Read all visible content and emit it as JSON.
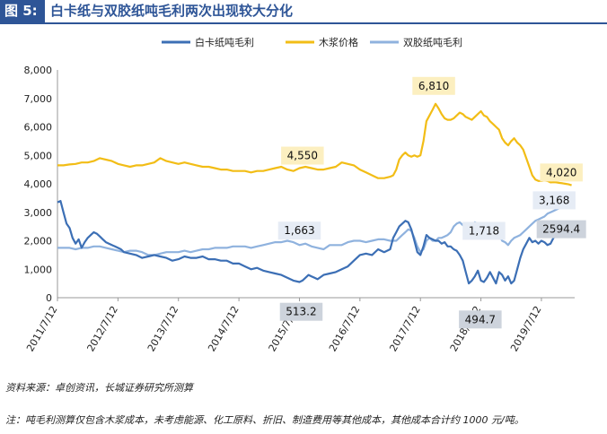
{
  "header": {
    "figure_label": "图 5:",
    "title": "白卡纸与双胶纸吨毛利两次出现较大分化"
  },
  "colors": {
    "brand": "#2e5597",
    "baika": "#3c6fb5",
    "pulp": "#f2bd16",
    "shuangjiao": "#8fb2de",
    "label_yellow_bg": "#fcefc0",
    "label_blue_bg": "#e6ecf5",
    "label_gray_bg": "#cdd3dc"
  },
  "source": "资料来源：卓创资讯，长城证券研究所测算",
  "note": "注：吨毛利测算仅包含木浆成本，未考虑能源、化工原料、折旧、制造费用等其他成本，其他成本合计约 1000 元/吨。",
  "chart_data": {
    "type": "line",
    "title": "白卡纸与双胶纸吨毛利两次出现较大分化",
    "xlabel": "",
    "ylabel": "",
    "ylim": [
      0,
      8000
    ],
    "yticks": [
      "0",
      "1,000",
      "2,000",
      "3,000",
      "4,000",
      "5,000",
      "6,000",
      "7,000",
      "8,000"
    ],
    "xlim": [
      2011.5,
      2020.05
    ],
    "xticks": [
      {
        "x": 2011.5,
        "label": "2011/7/12"
      },
      {
        "x": 2012.5,
        "label": "2012/7/12"
      },
      {
        "x": 2013.5,
        "label": "2013/7/12"
      },
      {
        "x": 2014.5,
        "label": "2014/7/12"
      },
      {
        "x": 2015.5,
        "label": "2015/7/12"
      },
      {
        "x": 2016.5,
        "label": "2016/7/12"
      },
      {
        "x": 2017.5,
        "label": "2017/7/12"
      },
      {
        "x": 2018.5,
        "label": "2018/7/12"
      },
      {
        "x": 2019.5,
        "label": "2019/7/12"
      }
    ],
    "legend": [
      "白卡纸吨毛利",
      "木浆价格",
      "双胶纸吨毛利"
    ],
    "series": [
      {
        "name": "白卡纸吨毛利",
        "x": [
          2011.5,
          2011.55,
          2011.6,
          2011.65,
          2011.7,
          2011.75,
          2011.8,
          2011.85,
          2011.9,
          2011.95,
          2012.0,
          2012.05,
          2012.1,
          2012.15,
          2012.2,
          2012.25,
          2012.3,
          2012.35,
          2012.4,
          2012.45,
          2012.5,
          2012.55,
          2012.6,
          2012.7,
          2012.8,
          2012.9,
          2013.0,
          2013.1,
          2013.2,
          2013.3,
          2013.4,
          2013.5,
          2013.6,
          2013.7,
          2013.8,
          2013.9,
          2014.0,
          2014.1,
          2014.2,
          2014.3,
          2014.4,
          2014.5,
          2014.6,
          2014.7,
          2014.8,
          2014.9,
          2015.0,
          2015.1,
          2015.2,
          2015.3,
          2015.4,
          2015.5,
          2015.55,
          2015.6,
          2015.65,
          2015.7,
          2015.75,
          2015.8,
          2015.9,
          2016.0,
          2016.1,
          2016.2,
          2016.3,
          2016.4,
          2016.5,
          2016.6,
          2016.7,
          2016.8,
          2016.9,
          2017.0,
          2017.05,
          2017.1,
          2017.15,
          2017.2,
          2017.25,
          2017.3,
          2017.35,
          2017.4,
          2017.45,
          2017.5,
          2017.55,
          2017.6,
          2017.65,
          2017.7,
          2017.75,
          2017.8,
          2017.85,
          2017.9,
          2017.95,
          2018.0,
          2018.05,
          2018.1,
          2018.15,
          2018.2,
          2018.25,
          2018.3,
          2018.35,
          2018.4,
          2018.45,
          2018.5,
          2018.55,
          2018.6,
          2018.65,
          2018.7,
          2018.75,
          2018.8,
          2018.85,
          2018.9,
          2018.95,
          2019.0,
          2019.05,
          2019.1,
          2019.15,
          2019.2,
          2019.25,
          2019.3,
          2019.35,
          2019.4,
          2019.45,
          2019.5,
          2019.55,
          2019.6,
          2019.65,
          2019.7,
          2019.75,
          2019.8,
          2019.85,
          2019.9,
          2019.95,
          2020.0
        ],
        "values": [
          3350,
          3400,
          3000,
          2600,
          2450,
          2100,
          1900,
          2050,
          1750,
          1950,
          2100,
          2200,
          2300,
          2250,
          2150,
          2050,
          1950,
          1900,
          1850,
          1800,
          1750,
          1700,
          1600,
          1550,
          1500,
          1400,
          1450,
          1500,
          1450,
          1400,
          1300,
          1350,
          1450,
          1400,
          1400,
          1450,
          1350,
          1350,
          1300,
          1300,
          1200,
          1200,
          1100,
          1000,
          1050,
          950,
          900,
          850,
          800,
          700,
          600,
          550,
          600,
          700,
          800,
          750,
          700,
          650,
          800,
          850,
          900,
          1000,
          1100,
          1300,
          1500,
          1550,
          1500,
          1700,
          1600,
          1700,
          2100,
          2300,
          2500,
          2600,
          2700,
          2650,
          2400,
          2000,
          1600,
          1500,
          1800,
          2200,
          2100,
          2050,
          2000,
          2000,
          1900,
          1950,
          1800,
          1800,
          1700,
          1650,
          1500,
          1300,
          900,
          500,
          600,
          750,
          950,
          600,
          550,
          700,
          900,
          700,
          500,
          900,
          800,
          600,
          750,
          500,
          600,
          1000,
          1400,
          1700,
          1900,
          2100,
          1950,
          2000,
          1900,
          2000,
          1950,
          1850,
          1900,
          2100,
          2200,
          2300,
          2400,
          2500,
          2450,
          2594.4
        ]
      },
      {
        "name": "木浆价格",
        "x": [
          2011.5,
          2011.6,
          2011.7,
          2011.8,
          2011.9,
          2012.0,
          2012.1,
          2012.2,
          2012.3,
          2012.4,
          2012.5,
          2012.6,
          2012.7,
          2012.8,
          2012.9,
          2013.0,
          2013.1,
          2013.2,
          2013.3,
          2013.4,
          2013.5,
          2013.6,
          2013.7,
          2013.8,
          2013.9,
          2014.0,
          2014.1,
          2014.2,
          2014.3,
          2014.4,
          2014.5,
          2014.6,
          2014.7,
          2014.8,
          2014.9,
          2015.0,
          2015.1,
          2015.2,
          2015.3,
          2015.4,
          2015.5,
          2015.6,
          2015.7,
          2015.8,
          2015.9,
          2016.0,
          2016.1,
          2016.2,
          2016.3,
          2016.4,
          2016.5,
          2016.6,
          2016.7,
          2016.8,
          2016.9,
          2017.0,
          2017.05,
          2017.1,
          2017.15,
          2017.2,
          2017.25,
          2017.3,
          2017.35,
          2017.4,
          2017.45,
          2017.5,
          2017.55,
          2017.6,
          2017.65,
          2017.7,
          2017.75,
          2017.8,
          2017.85,
          2017.9,
          2017.95,
          2018.0,
          2018.05,
          2018.1,
          2018.15,
          2018.2,
          2018.25,
          2018.3,
          2018.35,
          2018.4,
          2018.45,
          2018.5,
          2018.55,
          2018.6,
          2018.65,
          2018.7,
          2018.75,
          2018.8,
          2018.85,
          2018.9,
          2018.95,
          2019.0,
          2019.05,
          2019.1,
          2019.15,
          2019.2,
          2019.25,
          2019.3,
          2019.35,
          2019.4,
          2019.45,
          2019.5,
          2019.55,
          2019.6,
          2019.65,
          2019.7,
          2019.75,
          2019.8,
          2019.85,
          2019.9,
          2019.95,
          2020.0
        ],
        "values": [
          4650,
          4650,
          4680,
          4700,
          4750,
          4750,
          4800,
          4900,
          4850,
          4800,
          4700,
          4650,
          4600,
          4650,
          4650,
          4700,
          4750,
          4900,
          4800,
          4750,
          4700,
          4750,
          4700,
          4650,
          4600,
          4600,
          4550,
          4500,
          4500,
          4450,
          4450,
          4450,
          4400,
          4450,
          4450,
          4500,
          4550,
          4600,
          4500,
          4450,
          4550,
          4600,
          4550,
          4500,
          4500,
          4550,
          4600,
          4750,
          4700,
          4650,
          4500,
          4400,
          4300,
          4200,
          4200,
          4250,
          4300,
          4500,
          4850,
          5000,
          5100,
          5000,
          4950,
          5000,
          4950,
          5000,
          5500,
          6200,
          6400,
          6600,
          6810,
          6650,
          6450,
          6300,
          6250,
          6250,
          6300,
          6400,
          6500,
          6450,
          6350,
          6300,
          6250,
          6350,
          6450,
          6550,
          6400,
          6350,
          6200,
          6100,
          6000,
          5900,
          5600,
          5450,
          5350,
          5500,
          5600,
          5450,
          5350,
          5200,
          4900,
          4600,
          4300,
          4150,
          4100,
          4100,
          4120,
          4100,
          4050,
          4060,
          4050,
          4030,
          4020,
          4000,
          3980,
          3950
        ]
      },
      {
        "name": "双胶纸吨毛利",
        "x": [
          2011.5,
          2011.6,
          2011.7,
          2011.8,
          2011.9,
          2012.0,
          2012.1,
          2012.2,
          2012.3,
          2012.4,
          2012.5,
          2012.6,
          2012.7,
          2012.8,
          2012.9,
          2013.0,
          2013.1,
          2013.2,
          2013.3,
          2013.4,
          2013.5,
          2013.6,
          2013.7,
          2013.8,
          2013.9,
          2014.0,
          2014.1,
          2014.2,
          2014.3,
          2014.4,
          2014.5,
          2014.6,
          2014.7,
          2014.8,
          2014.9,
          2015.0,
          2015.1,
          2015.2,
          2015.3,
          2015.4,
          2015.5,
          2015.6,
          2015.7,
          2015.8,
          2015.9,
          2016.0,
          2016.1,
          2016.2,
          2016.3,
          2016.4,
          2016.5,
          2016.6,
          2016.7,
          2016.8,
          2016.9,
          2017.0,
          2017.05,
          2017.1,
          2017.15,
          2017.2,
          2017.25,
          2017.3,
          2017.35,
          2017.4,
          2017.45,
          2017.5,
          2017.55,
          2017.6,
          2017.65,
          2017.7,
          2017.75,
          2017.8,
          2017.85,
          2017.9,
          2017.95,
          2018.0,
          2018.05,
          2018.1,
          2018.15,
          2018.2,
          2018.25,
          2018.3,
          2018.35,
          2018.4,
          2018.45,
          2018.5,
          2018.55,
          2018.6,
          2018.65,
          2018.7,
          2018.75,
          2018.8,
          2018.85,
          2018.9,
          2018.95,
          2019.0,
          2019.05,
          2019.1,
          2019.15,
          2019.2,
          2019.25,
          2019.3,
          2019.35,
          2019.4,
          2019.45,
          2019.5,
          2019.55,
          2019.6,
          2019.65,
          2019.7,
          2019.75,
          2019.8,
          2019.85,
          2019.9,
          2019.95,
          2020.0
        ],
        "values": [
          1750,
          1750,
          1750,
          1700,
          1750,
          1750,
          1800,
          1800,
          1750,
          1700,
          1650,
          1600,
          1650,
          1650,
          1600,
          1500,
          1500,
          1550,
          1600,
          1600,
          1600,
          1650,
          1600,
          1650,
          1700,
          1700,
          1750,
          1750,
          1750,
          1800,
          1800,
          1800,
          1750,
          1800,
          1850,
          1900,
          1950,
          1950,
          2000,
          1950,
          1850,
          1900,
          1800,
          1750,
          1700,
          1850,
          1850,
          1850,
          1950,
          2000,
          2000,
          1950,
          2000,
          2050,
          2050,
          2000,
          2000,
          2000,
          2100,
          2200,
          2300,
          2400,
          2350,
          2100,
          1800,
          1600,
          1700,
          2000,
          2100,
          2000,
          2000,
          2100,
          2100,
          2150,
          2200,
          2300,
          2500,
          2600,
          2650,
          2550,
          2450,
          2400,
          2500,
          2650,
          2600,
          2500,
          2300,
          2350,
          2250,
          2350,
          2300,
          2200,
          2000,
          1950,
          1850,
          2000,
          2100,
          2150,
          2200,
          2300,
          2400,
          2500,
          2600,
          2700,
          2750,
          2800,
          2850,
          2950,
          3000,
          3050,
          3100,
          3150,
          3168,
          3200,
          3180,
          3150
        ]
      }
    ],
    "annotations": [
      {
        "series": "木浆价格",
        "x": 2015.55,
        "y": 4550,
        "label": "4,550",
        "style": "yellow"
      },
      {
        "series": "木浆价格",
        "x": 2017.75,
        "y": 6810,
        "label": "6,810",
        "style": "yellow"
      },
      {
        "series": "木浆价格",
        "x": 2019.83,
        "y": 4020,
        "label": "4,020",
        "style": "yellow"
      },
      {
        "series": "双胶纸吨毛利",
        "x": 2015.5,
        "y": 1663,
        "label": "1,663",
        "style": "blue"
      },
      {
        "series": "双胶纸吨毛利",
        "x": 2018.55,
        "y": 1718,
        "label": "1,718",
        "style": "blue"
      },
      {
        "series": "双胶纸吨毛利",
        "x": 2019.83,
        "y": 3168,
        "label": "3,168",
        "style": "blue"
      },
      {
        "series": "白卡纸吨毛利",
        "x": 2015.5,
        "y": 513.2,
        "label": "513.2",
        "style": "gray"
      },
      {
        "series": "白卡纸吨毛利",
        "x": 2018.43,
        "y": 494.7,
        "label": "494.7",
        "style": "gray"
      },
      {
        "series": "白卡纸吨毛利",
        "x": 2019.83,
        "y": 2594.4,
        "label": "2594.4",
        "style": "gray"
      }
    ]
  }
}
